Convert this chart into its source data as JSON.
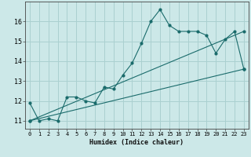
{
  "xlabel": "Humidex (Indice chaleur)",
  "bg_color": "#cce8e8",
  "grid_color": "#aad0d0",
  "line_color": "#1a6b6b",
  "xlim": [
    -0.5,
    23.5
  ],
  "ylim": [
    10.6,
    17.0
  ],
  "yticks": [
    11,
    12,
    13,
    14,
    15,
    16
  ],
  "xticks": [
    0,
    1,
    2,
    3,
    4,
    5,
    6,
    7,
    8,
    9,
    10,
    11,
    12,
    13,
    14,
    15,
    16,
    17,
    18,
    19,
    20,
    21,
    22,
    23
  ],
  "series0_x": [
    0,
    1,
    2,
    3,
    4,
    5,
    6,
    7,
    8,
    9,
    10,
    11,
    12,
    13,
    14,
    15,
    16,
    17,
    18,
    19,
    20,
    21,
    22,
    23
  ],
  "series0_y": [
    11.9,
    11.0,
    11.1,
    11.0,
    12.2,
    12.2,
    12.0,
    11.9,
    12.7,
    12.6,
    13.3,
    13.9,
    14.9,
    16.0,
    16.6,
    15.8,
    15.5,
    15.5,
    15.5,
    15.3,
    14.4,
    15.1,
    15.5,
    13.6
  ],
  "series1_x": [
    0,
    23
  ],
  "series1_y": [
    11.0,
    13.6
  ],
  "series2_x": [
    0,
    23
  ],
  "series2_y": [
    11.0,
    15.5
  ]
}
